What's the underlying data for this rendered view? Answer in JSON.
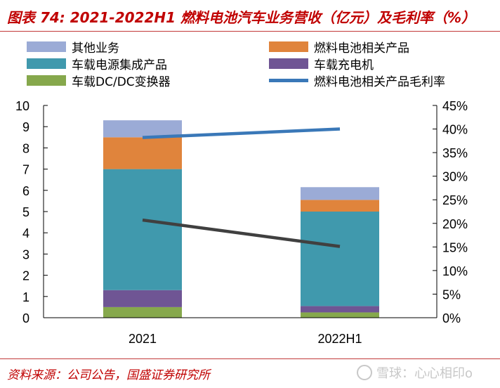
{
  "title": "图表 74:  2021-2022H1 燃料电池汽车业务营收（亿元）及毛利率（%）",
  "source": "资料来源：公司公告，国盛证券研究所",
  "watermark": "雪球：心心相印o",
  "legend": [
    {
      "label": "其他业务",
      "color": "#9babd6",
      "kind": "bar"
    },
    {
      "label": "燃料电池相关产品",
      "color": "#e0843c",
      "kind": "bar"
    },
    {
      "label": "车载电源集成产品",
      "color": "#4099ad",
      "kind": "bar"
    },
    {
      "label": "车载充电机",
      "color": "#6f5594",
      "kind": "bar"
    },
    {
      "label": "车载DC/DC变换器",
      "color": "#86a84c",
      "kind": "bar"
    },
    {
      "label": "燃料电池相关产品毛利率",
      "color": "#3a78b8",
      "kind": "line"
    }
  ],
  "chart_data": {
    "type": "bar",
    "stacked": true,
    "categories": [
      "2021",
      "2022H1"
    ],
    "series": [
      {
        "name": "车载DC/DC变换器",
        "values": [
          0.5,
          0.25
        ],
        "color": "#86a84c"
      },
      {
        "name": "车载充电机",
        "values": [
          0.8,
          0.3
        ],
        "color": "#6f5594"
      },
      {
        "name": "车载电源集成产品",
        "values": [
          5.7,
          4.45
        ],
        "color": "#4099ad"
      },
      {
        "name": "燃料电池相关产品",
        "values": [
          1.5,
          0.55
        ],
        "color": "#e0843c"
      },
      {
        "name": "其他业务",
        "values": [
          0.8,
          0.6
        ],
        "color": "#9babd6"
      }
    ],
    "lines": [
      {
        "name": "燃料电池相关产品毛利率",
        "axis": "y2",
        "values": [
          38.2,
          40.0
        ],
        "color": "#3a78b8"
      },
      {
        "name": "",
        "axis": "y2",
        "values": [
          20.7,
          15.1
        ],
        "color": "#404040"
      }
    ],
    "ylim": [
      0,
      10
    ],
    "yticks": [
      "0",
      "1",
      "2",
      "3",
      "4",
      "5",
      "6",
      "7",
      "8",
      "9",
      "10"
    ],
    "y2lim": [
      0,
      45
    ],
    "y2ticks": [
      "0%",
      "5%",
      "10%",
      "15%",
      "20%",
      "25%",
      "30%",
      "35%",
      "40%",
      "45%"
    ],
    "grid": false,
    "legend_position": "top"
  }
}
